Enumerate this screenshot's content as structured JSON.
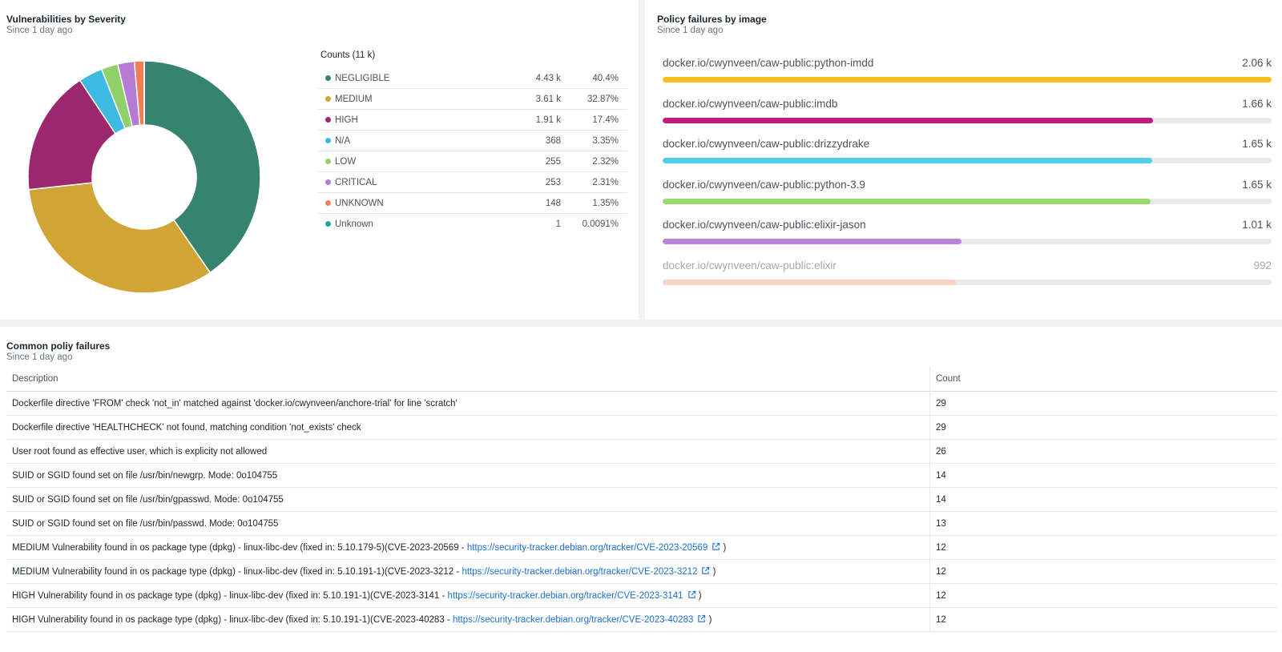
{
  "severity_panel": {
    "title": "Vulnerabilities by Severity",
    "subtitle": "Since 1 day ago",
    "counts_title": "Counts (11 k)",
    "rows": [
      {
        "name": "NEGLIGIBLE",
        "count": "4.43 k",
        "pct": "40.4%",
        "color": "#36836f"
      },
      {
        "name": "MEDIUM",
        "count": "3.61 k",
        "pct": "32.87%",
        "color": "#d1a535"
      },
      {
        "name": "HIGH",
        "count": "1.91 k",
        "pct": "17.4%",
        "color": "#9b276e"
      },
      {
        "name": "N/A",
        "count": "368",
        "pct": "3.35%",
        "color": "#3ebae1"
      },
      {
        "name": "LOW",
        "count": "255",
        "pct": "2.32%",
        "color": "#8fd06b"
      },
      {
        "name": "CRITICAL",
        "count": "253",
        "pct": "2.31%",
        "color": "#b57bd3"
      },
      {
        "name": "UNKNOWN",
        "count": "148",
        "pct": "1.35%",
        "color": "#f47e52"
      },
      {
        "name": "Unknown",
        "count": "1",
        "pct": "0.0091%",
        "color": "#26a79b"
      }
    ]
  },
  "chart_data": {
    "type": "pie",
    "categories": [
      "NEGLIGIBLE",
      "MEDIUM",
      "HIGH",
      "N/A",
      "LOW",
      "CRITICAL",
      "UNKNOWN",
      "Unknown"
    ],
    "values": [
      40.4,
      32.87,
      17.4,
      3.35,
      2.32,
      2.31,
      1.35,
      0.0091
    ],
    "colors": [
      "#36836f",
      "#d1a535",
      "#9b276e",
      "#3ebae1",
      "#8fd06b",
      "#b57bd3",
      "#f47e52",
      "#26a79b"
    ],
    "donut": true
  },
  "policy_panel": {
    "title": "Policy failures by image",
    "subtitle": "Since 1 day ago",
    "max": 2060,
    "items": [
      {
        "label": "docker.io/cwynveen/caw-public:python-imdd",
        "value_label": "2.06 k",
        "value": 2060,
        "color": "#f5be1c",
        "faded": false
      },
      {
        "label": "docker.io/cwynveen/caw-public:imdb",
        "value_label": "1.66 k",
        "value": 1660,
        "color": "#be1b7b",
        "faded": false
      },
      {
        "label": "docker.io/cwynveen/caw-public:drizzydrake",
        "value_label": "1.65 k",
        "value": 1655,
        "color": "#4fcfea",
        "faded": false
      },
      {
        "label": "docker.io/cwynveen/caw-public:python-3.9",
        "value_label": "1.65 k",
        "value": 1650,
        "color": "#98dd6c",
        "faded": false
      },
      {
        "label": "docker.io/cwynveen/caw-public:elixir-jason",
        "value_label": "1.01 k",
        "value": 1010,
        "color": "#bb82d8",
        "faded": false
      },
      {
        "label": "docker.io/cwynveen/caw-public:elixir",
        "value_label": "992",
        "value": 992,
        "color": "#fad3c7",
        "faded": true
      }
    ]
  },
  "common_panel": {
    "title": "Common poliy failures",
    "subtitle": "Since 1 day ago",
    "col_description": "Description",
    "col_count": "Count",
    "rows": [
      {
        "text": "Dockerfile directive 'FROM' check 'not_in' matched against 'docker.io/cwynveen/anchore-trial' for line 'scratch'",
        "link": "",
        "suffix": "",
        "count": "29"
      },
      {
        "text": "Dockerfile directive 'HEALTHCHECK' not found, matching condition 'not_exists' check",
        "link": "",
        "suffix": "",
        "count": "29"
      },
      {
        "text": "User root found as effective user, which is explicity not allowed",
        "link": "",
        "suffix": "",
        "count": "26"
      },
      {
        "text": "SUID or SGID found set on file /usr/bin/newgrp. Mode: 0o104755",
        "link": "",
        "suffix": "",
        "count": "14"
      },
      {
        "text": "SUID or SGID found set on file /usr/bin/gpasswd. Mode: 0o104755",
        "link": "",
        "suffix": "",
        "count": "14"
      },
      {
        "text": "SUID or SGID found set on file /usr/bin/passwd. Mode: 0o104755",
        "link": "",
        "suffix": "",
        "count": "13"
      },
      {
        "text": "MEDIUM Vulnerability found in os package type (dpkg) - linux-libc-dev (fixed in: 5.10.179-5)(CVE-2023-20569 - ",
        "link": "https://security-tracker.debian.org/tracker/CVE-2023-20569",
        "suffix": " )",
        "count": "12"
      },
      {
        "text": "MEDIUM Vulnerability found in os package type (dpkg) - linux-libc-dev (fixed in: 5.10.191-1)(CVE-2023-3212 - ",
        "link": "https://security-tracker.debian.org/tracker/CVE-2023-3212",
        "suffix": " )",
        "count": "12"
      },
      {
        "text": "HIGH Vulnerability found in os package type (dpkg) - linux-libc-dev (fixed in: 5.10.191-1)(CVE-2023-3141 - ",
        "link": "https://security-tracker.debian.org/tracker/CVE-2023-3141",
        "suffix": " )",
        "count": "12"
      },
      {
        "text": "HIGH Vulnerability found in os package type (dpkg) - linux-libc-dev (fixed in: 5.10.191-1)(CVE-2023-40283 - ",
        "link": "https://security-tracker.debian.org/tracker/CVE-2023-40283",
        "suffix": " )",
        "count": "12"
      }
    ]
  }
}
